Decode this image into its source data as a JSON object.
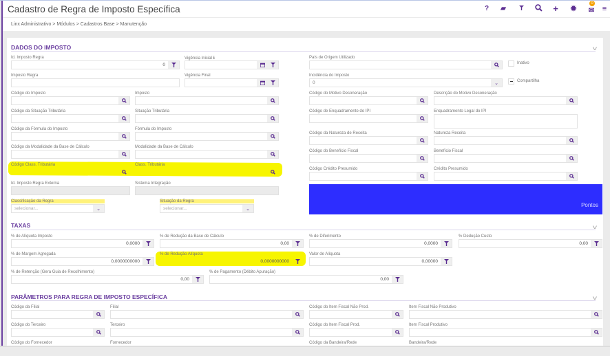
{
  "header": {
    "title": "Cadastro de Regra de Imposto Específica",
    "mail_count": "0",
    "icons": [
      "help-icon",
      "eraser-icon",
      "filter-icon",
      "search-icon",
      "plus-icon",
      "gear-icon",
      "mail-icon",
      "menu-icon"
    ]
  },
  "breadcrumb": "Linx Administrativo  >  Módulos  >  Cadastros Base  >  Manutenção",
  "dados": {
    "title": "DADOS DO IMPOSTO",
    "id_imposto_regra": {
      "label": "Id. Imposto Regra",
      "value": "0"
    },
    "vigencia_inicial": "Vigência Inicial ℹ",
    "vigencia_final": "Vigência Final",
    "imposto_regra": "Imposto Regra",
    "pais_origem": "País de Origem Utilizado",
    "inativo": "Inativo",
    "incidencia": {
      "label": "Incidência do Imposto",
      "value": "0"
    },
    "compartilha": "Compartilha",
    "codigo_imposto": "Código do Imposto",
    "imposto": "Imposto",
    "codigo_situacao": "Código da Situação Tributária",
    "situacao": "Situação Tributária",
    "codigo_formula": "Código da Fórmula do Imposto",
    "formula": "Fórmula do Imposto",
    "codigo_modalidade": "Código da Modalidade da Base de Cálculo",
    "modalidade": "Modalidade da Base de Cálculo",
    "codigo_class": "Código Class. Tributária",
    "class": "Class. Tributária",
    "id_externa": "Id. Imposto Regra Externa",
    "sistema": "Sistema Integração",
    "classificacao": {
      "label": "Classificação da Regra",
      "placeholder": "selecionar..."
    },
    "situacao_regra": {
      "label": "Situação da Regra",
      "placeholder": "selecionar..."
    },
    "codigo_motivo": "Código do Motivo Desoneração",
    "descricao_motivo": "Descrição do Motivo Desoneração",
    "codigo_enquadramento": "Código de Enquadramento do IPI",
    "enquadramento_legal": "Enquadramento Legal do IPI",
    "codigo_natureza": "Código da Natureza de Receita",
    "natureza": "Natureza Receita",
    "codigo_beneficio": "Código do Benefício Fiscal",
    "beneficio": "Benefício Fiscal",
    "codigo_credito": "Código Crédito Presumido",
    "credito": "Crédito Presumido",
    "pontos": "Pontos",
    "pontos_color": "#2d2dff"
  },
  "taxas": {
    "title": "TAXAS",
    "aliquota": {
      "label": "% de Alíquota Imposto",
      "value": "0,0000"
    },
    "reducao_base": {
      "label": "% de Redução da Base de Cálculo",
      "value": "0,00"
    },
    "diferimento": {
      "label": "% de Diferimento",
      "value": "0,0000"
    },
    "deducao_custo": {
      "label": "% Dedução Custo",
      "value": "0,00"
    },
    "margem": {
      "label": "% de Margem Agregada",
      "value": "0,0000000000"
    },
    "reducao_aliquota": {
      "label": "% de Redução Alíquota",
      "value": "0,0000000000"
    },
    "valor_aliquota": {
      "label": "Valor de Alíquota",
      "value": "0,00000"
    },
    "retencao": {
      "label": "% de Retenção (Gera Guia de Recolhimento)",
      "value": "0,00"
    },
    "pagamento": {
      "label": "% de Pagamento (Débito Apuração)",
      "value": "0,00"
    }
  },
  "parametros": {
    "title": "PARÂMETROS PARA REGRA DE IMPOSTO ESPECÍFICA",
    "codigo_filial": "Código da Filial",
    "filial": "Filial",
    "codigo_item_np": "Código do Item Fiscal Não Prod.",
    "item_np": "Item Fiscal Não Produtivo",
    "codigo_terceiro": "Código do Terceiro",
    "terceiro": "Terceiro",
    "codigo_item_p": "Código do Item Fiscal Prod.",
    "item_p": "Item Fiscal Produtivo",
    "codigo_fornecedor": "Código do Fornecedor",
    "fornecedor": "Fornecedor",
    "codigo_bandeira": "Código da Bandeira/Rede",
    "bandeira": "Bandeira/Rede"
  },
  "colors": {
    "accent": "#6b3fa0",
    "highlight": "#f7f500"
  }
}
